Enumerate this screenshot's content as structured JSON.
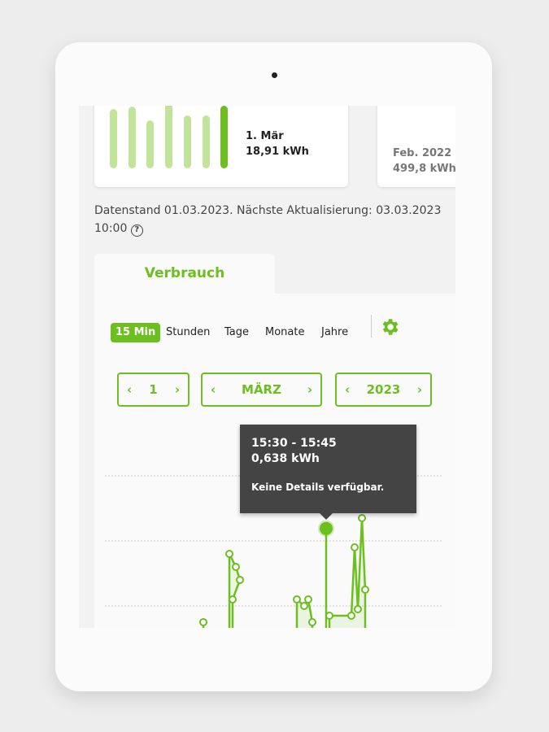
{
  "summary_card": {
    "label_date": "1. Mär",
    "label_value": "18,91 kWh",
    "bars": [
      0.86,
      0.89,
      0.69,
      1.0,
      0.77,
      0.77,
      0.91
    ],
    "axis_top": "3.0"
  },
  "month_card": {
    "label_date": "Feb. 2022",
    "label_value": "499,8 kWh"
  },
  "status": {
    "text": "Datenstand 01.03.2023. Nächste Aktualisierung: 03.03.2023 10:00",
    "help_icon": "?"
  },
  "tabs": [
    {
      "label": "Verbrauch"
    }
  ],
  "periods": [
    {
      "label": "15 Min",
      "active": true
    },
    {
      "label": "Stunden"
    },
    {
      "label": "Tage"
    },
    {
      "label": "Monate"
    },
    {
      "label": "Jahre"
    }
  ],
  "settings_icon": "gear-icon",
  "selectors": {
    "day": "1",
    "month": "MÄRZ",
    "year": "2023"
  },
  "accent": "#6cbf1e",
  "tooltip": {
    "time": "15:30 - 15:45",
    "value": "0,638 kWh",
    "details": "Keine Details verfügbar."
  },
  "chart_data": {
    "type": "line",
    "unit": "kWh",
    "selected_index": 9,
    "values": [
      0.35,
      0.56,
      0.52,
      0.48,
      0.42,
      0.42,
      0.4,
      0.42,
      0.35,
      0.638,
      0.37,
      0.37,
      0.58,
      0.39,
      0.67,
      0.45
    ],
    "gridlines": [
      0.4,
      0.6,
      0.8
    ]
  }
}
